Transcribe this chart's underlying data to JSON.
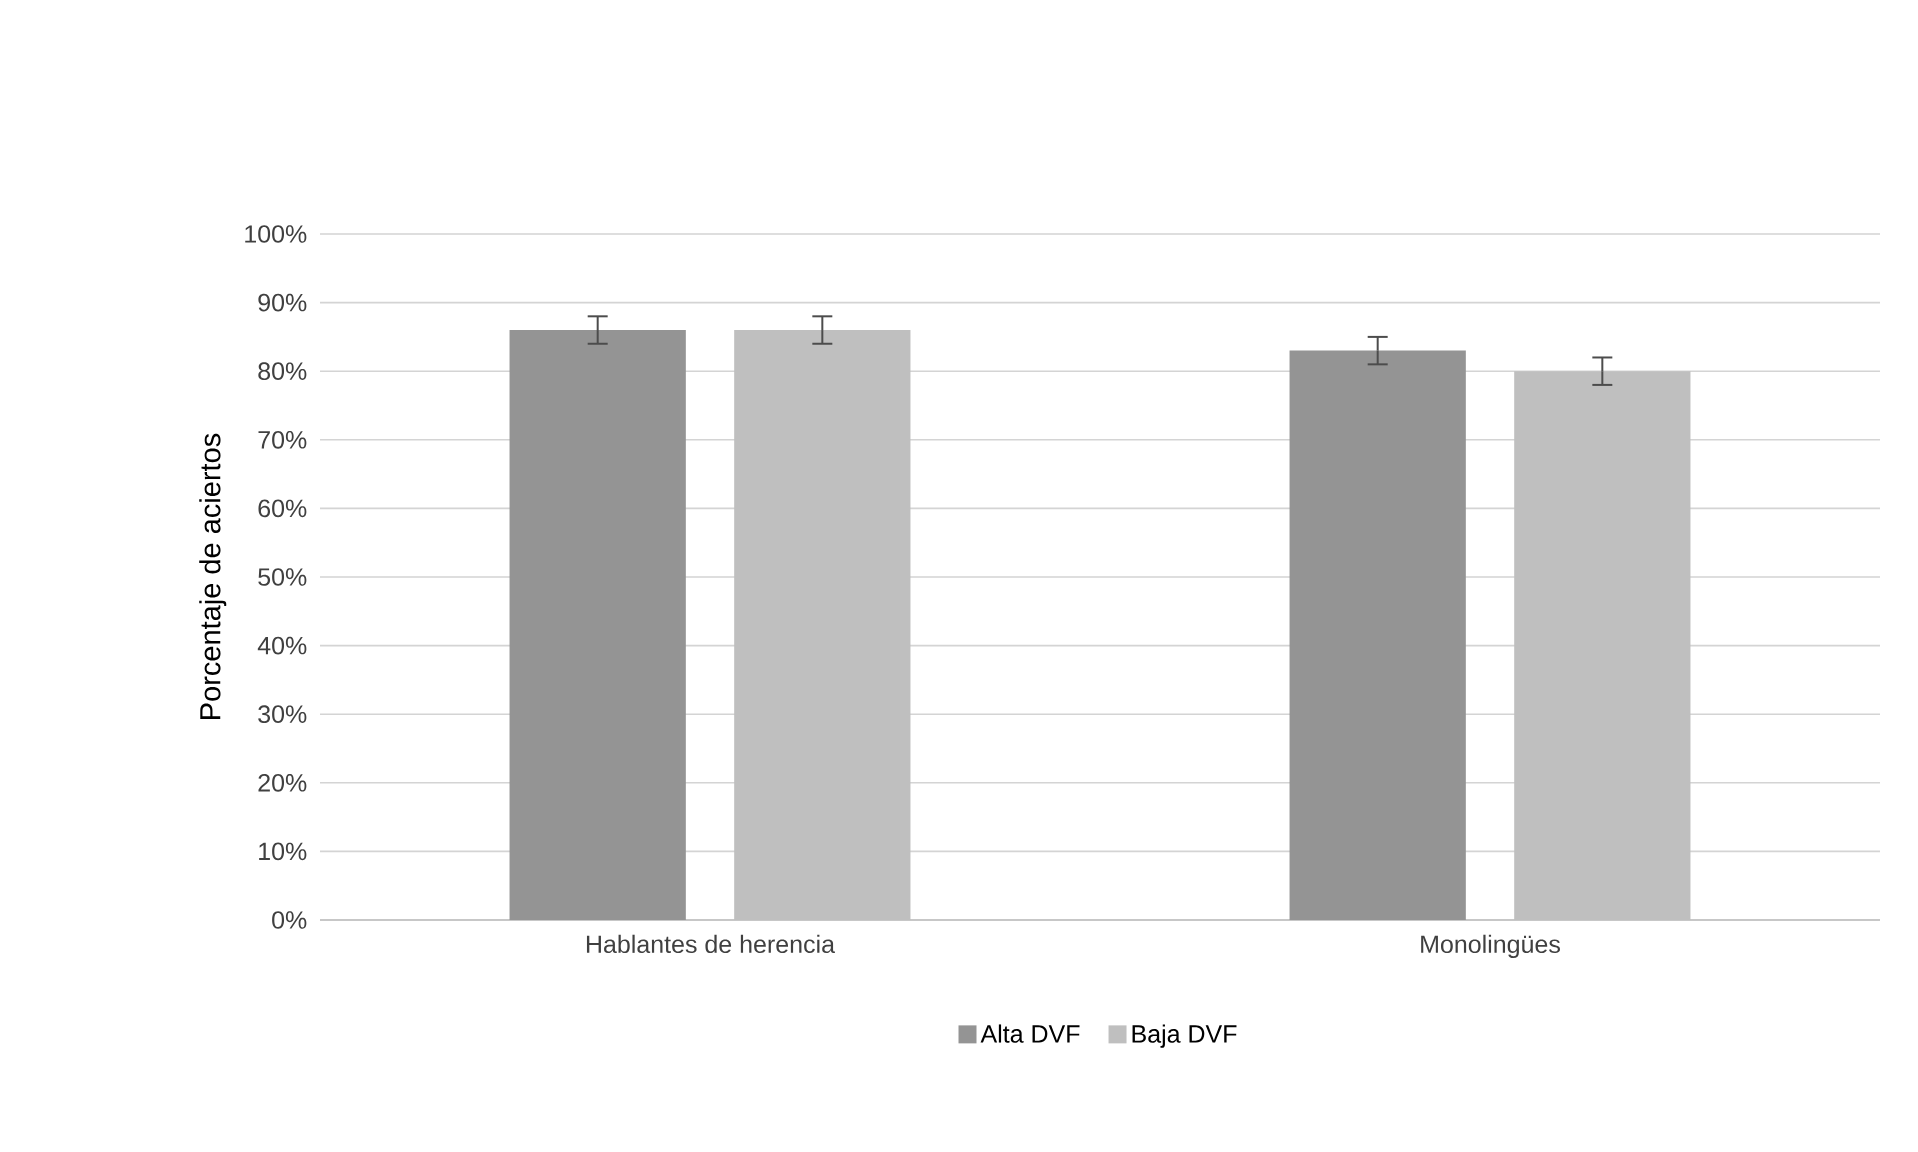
{
  "chart_data": {
    "type": "bar",
    "ylabel": "Porcentaje de aciertos",
    "categories": [
      "Hablantes de herencia",
      "Monolingües"
    ],
    "series": [
      {
        "name": "Alta DVF",
        "color": "#949494",
        "values": [
          86,
          83
        ],
        "errors": [
          2,
          2
        ]
      },
      {
        "name": "Baja DVF",
        "color": "#bfbfbf",
        "values": [
          86,
          80
        ],
        "errors": [
          2,
          2
        ]
      }
    ],
    "ylim": [
      0,
      100
    ],
    "yticks": [
      {
        "value": 0,
        "label": "0%"
      },
      {
        "value": 10,
        "label": "10%"
      },
      {
        "value": 20,
        "label": "20%"
      },
      {
        "value": 30,
        "label": "30%"
      },
      {
        "value": 40,
        "label": "40%"
      },
      {
        "value": 50,
        "label": "50%"
      },
      {
        "value": 60,
        "label": "60%"
      },
      {
        "value": 70,
        "label": "70%"
      },
      {
        "value": 80,
        "label": "80%"
      },
      {
        "value": 90,
        "label": "90%"
      },
      {
        "value": 100,
        "label": "100%"
      }
    ],
    "grid": "y",
    "legend": "bottom"
  }
}
